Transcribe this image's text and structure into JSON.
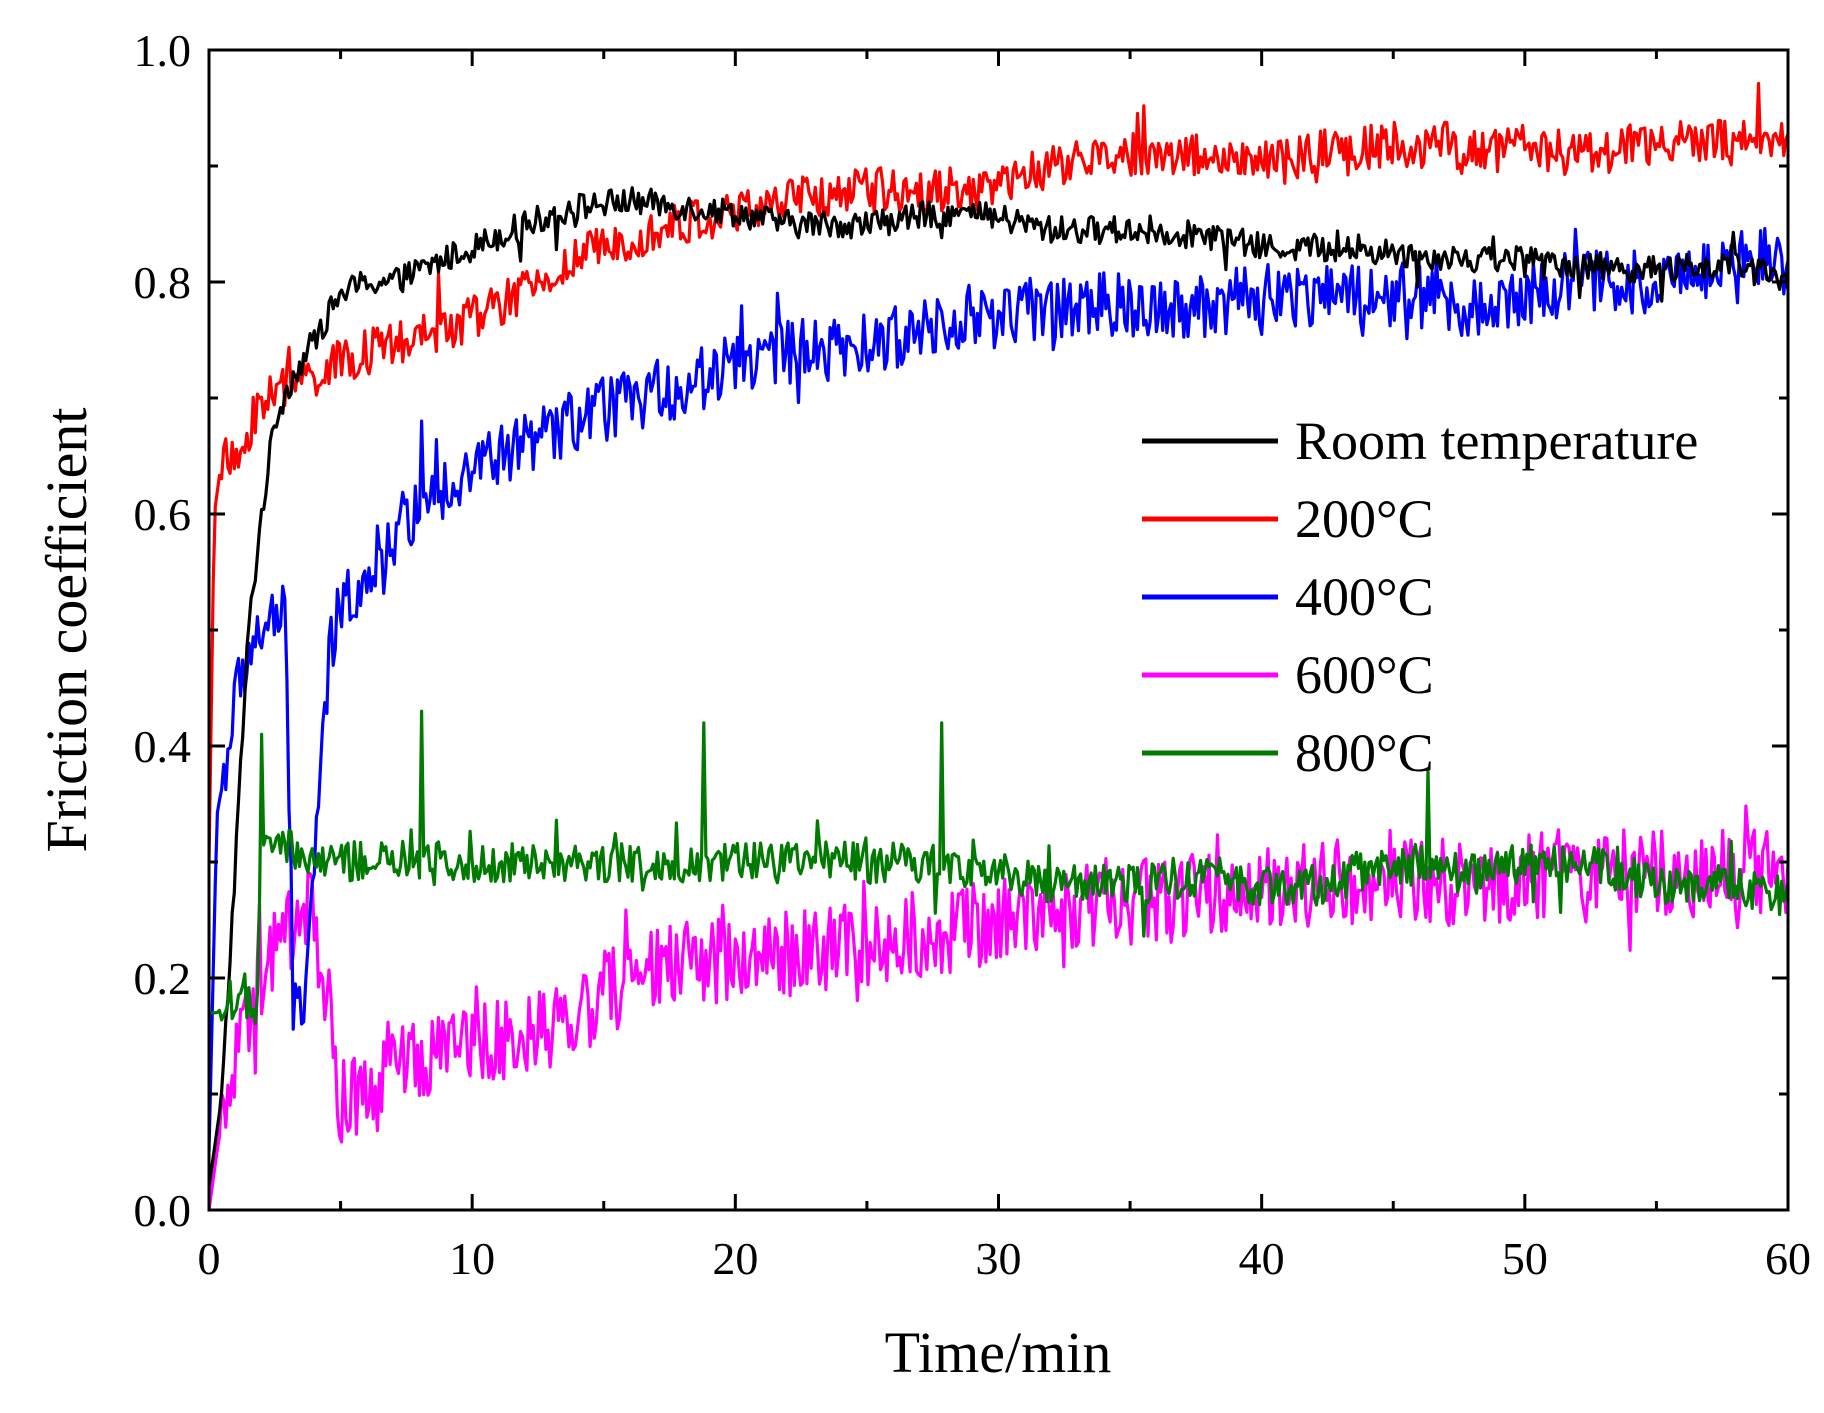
{
  "chart_data": {
    "type": "line",
    "title": "",
    "xlabel": "Time/min",
    "ylabel": "Friction coefficient",
    "xlim": [
      0,
      60
    ],
    "ylim": [
      0.0,
      1.0
    ],
    "xticks": [
      0,
      10,
      20,
      30,
      40,
      50,
      60
    ],
    "xtick_labels": [
      "0",
      "10",
      "20",
      "30",
      "40",
      "50",
      "60"
    ],
    "yticks": [
      0.0,
      0.2,
      0.4,
      0.6,
      0.8,
      1.0
    ],
    "ytick_labels": [
      "0.0",
      "0.2",
      "0.4",
      "0.6",
      "0.8",
      "1.0"
    ],
    "grid": false,
    "legend_position": "right",
    "series": [
      {
        "name": "Room temperature",
        "color": "#000000",
        "x": [
          0,
          0.5,
          1,
          1.5,
          2,
          2.5,
          3,
          4,
          5,
          6,
          7,
          8,
          10,
          12,
          14,
          16,
          18,
          20,
          22,
          25,
          28,
          30,
          32,
          35,
          38,
          40,
          42,
          45,
          48,
          50,
          52,
          55,
          58,
          60
        ],
        "y": [
          0.02,
          0.1,
          0.3,
          0.5,
          0.6,
          0.68,
          0.71,
          0.75,
          0.79,
          0.8,
          0.8,
          0.81,
          0.83,
          0.85,
          0.865,
          0.87,
          0.865,
          0.86,
          0.85,
          0.85,
          0.86,
          0.855,
          0.845,
          0.845,
          0.84,
          0.83,
          0.83,
          0.825,
          0.82,
          0.82,
          0.815,
          0.81,
          0.815,
          0.8
        ],
        "noise": 0.012
      },
      {
        "name": "200°C",
        "color": "#ff0000",
        "x": [
          0,
          0.2,
          0.5,
          1,
          1.5,
          2,
          3,
          4,
          6,
          8,
          10,
          12,
          14,
          16,
          18,
          20,
          22,
          25,
          28,
          30,
          32,
          35,
          38,
          40,
          42,
          45,
          48,
          50,
          52,
          55,
          58,
          60
        ],
        "y": [
          0.3,
          0.6,
          0.65,
          0.64,
          0.67,
          0.7,
          0.71,
          0.72,
          0.74,
          0.75,
          0.77,
          0.79,
          0.82,
          0.84,
          0.85,
          0.86,
          0.87,
          0.88,
          0.88,
          0.88,
          0.9,
          0.91,
          0.91,
          0.9,
          0.91,
          0.92,
          0.91,
          0.92,
          0.91,
          0.92,
          0.92,
          0.92
        ],
        "noise": 0.02
      },
      {
        "name": "400°C",
        "color": "#0000ff",
        "x": [
          0,
          0.3,
          0.6,
          1,
          1.5,
          2,
          2.5,
          2.9,
          3.2,
          3.6,
          4.0,
          4.6,
          5,
          6,
          7,
          8,
          10,
          12,
          14,
          16,
          18,
          20,
          22,
          24,
          26,
          28,
          30,
          32,
          35,
          38,
          40,
          42,
          45,
          48,
          50,
          52,
          55,
          58,
          60
        ],
        "y": [
          0.05,
          0.34,
          0.38,
          0.44,
          0.48,
          0.5,
          0.51,
          0.51,
          0.18,
          0.18,
          0.3,
          0.48,
          0.52,
          0.55,
          0.58,
          0.61,
          0.64,
          0.66,
          0.68,
          0.7,
          0.71,
          0.73,
          0.74,
          0.74,
          0.75,
          0.77,
          0.77,
          0.78,
          0.78,
          0.78,
          0.79,
          0.79,
          0.79,
          0.78,
          0.79,
          0.8,
          0.8,
          0.82,
          0.83
        ],
        "noise": 0.028
      },
      {
        "name": "600°C",
        "color": "#ff00ff",
        "x": [
          0,
          0.3,
          0.6,
          1,
          2,
          3,
          3.8,
          4.2,
          4.7,
          5,
          6,
          8,
          10,
          12,
          14,
          16,
          18,
          20,
          22,
          25,
          28,
          30,
          32,
          35,
          38,
          40,
          42,
          45,
          48,
          50,
          52,
          55,
          58,
          60
        ],
        "y": [
          0.0,
          0.05,
          0.09,
          0.12,
          0.2,
          0.24,
          0.27,
          0.22,
          0.15,
          0.09,
          0.1,
          0.13,
          0.15,
          0.15,
          0.17,
          0.2,
          0.21,
          0.22,
          0.22,
          0.23,
          0.24,
          0.25,
          0.26,
          0.27,
          0.27,
          0.28,
          0.28,
          0.29,
          0.28,
          0.29,
          0.29,
          0.29,
          0.29,
          0.29
        ],
        "noise": 0.038
      },
      {
        "name": "800°C",
        "color": "#007a00",
        "x": [
          0,
          0.3,
          0.8,
          1.3,
          1.8,
          2.0,
          2.3,
          3,
          4,
          5,
          6,
          8,
          10,
          12,
          14,
          16,
          18,
          20,
          22,
          25,
          28,
          30,
          32,
          35,
          38,
          40,
          42,
          45,
          48,
          50,
          52,
          55,
          58,
          60
        ],
        "y": [
          0.17,
          0.17,
          0.18,
          0.19,
          0.16,
          0.31,
          0.32,
          0.31,
          0.3,
          0.3,
          0.3,
          0.3,
          0.3,
          0.3,
          0.3,
          0.3,
          0.3,
          0.3,
          0.3,
          0.3,
          0.3,
          0.29,
          0.28,
          0.28,
          0.29,
          0.28,
          0.28,
          0.3,
          0.29,
          0.3,
          0.3,
          0.28,
          0.28,
          0.27
        ],
        "noise": 0.018,
        "spikes": [
          [
            8.1,
            0.43
          ],
          [
            18.8,
            0.42
          ],
          [
            27.8,
            0.42
          ],
          [
            46.3,
            0.38
          ],
          [
            2.0,
            0.41
          ]
        ]
      }
    ]
  }
}
